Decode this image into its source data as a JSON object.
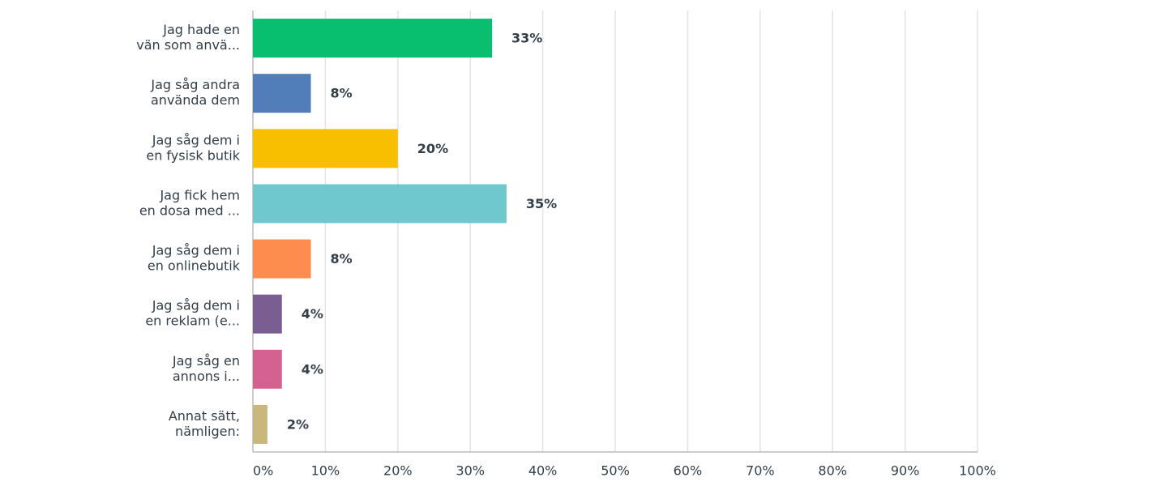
{
  "chart_data": {
    "type": "hbar",
    "categories": [
      [
        "Jag hade en",
        "vän som anvä..."
      ],
      [
        "Jag såg andra",
        "använda dem"
      ],
      [
        "Jag såg dem i",
        "en fysisk butik"
      ],
      [
        "Jag fick hem",
        "en dosa med ..."
      ],
      [
        "Jag såg dem i",
        "en onlinebutik"
      ],
      [
        "Jag såg dem i",
        "en reklam (e..."
      ],
      [
        "Jag såg en",
        "annons i..."
      ],
      [
        "Annat sätt,",
        "nämligen:"
      ]
    ],
    "values": [
      33,
      8,
      20,
      35,
      8,
      4,
      4,
      2
    ],
    "value_labels": [
      "33%",
      "8%",
      "20%",
      "35%",
      "8%",
      "4%",
      "4%",
      "2%"
    ],
    "colors": [
      "#07bf6f",
      "#517db8",
      "#f8be00",
      "#6ec8cd",
      "#fd8c4f",
      "#7b5e91",
      "#d4618f",
      "#c9b77c"
    ],
    "xlim": [
      0,
      100
    ],
    "xticks": [
      {
        "value": 0,
        "label": "0%"
      },
      {
        "value": 10,
        "label": "10%"
      },
      {
        "value": 20,
        "label": "20%"
      },
      {
        "value": 30,
        "label": "30%"
      },
      {
        "value": 40,
        "label": "40%"
      },
      {
        "value": 50,
        "label": "50%"
      },
      {
        "value": 60,
        "label": "60%"
      },
      {
        "value": 70,
        "label": "70%"
      },
      {
        "value": 80,
        "label": "80%"
      },
      {
        "value": 90,
        "label": "90%"
      },
      {
        "value": 100,
        "label": "100%"
      }
    ],
    "grid": true
  }
}
